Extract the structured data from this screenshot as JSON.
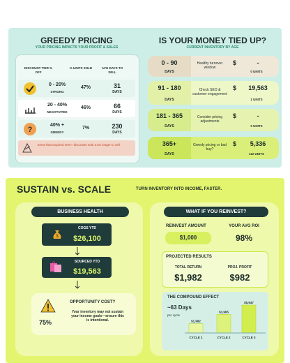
{
  "pricing": {
    "title": "GREEDY PRICING",
    "subtitle": "YOUR PRICING IMPACTS YOUR PROFIT & SALES",
    "headers": [
      "DISCOUNT TIER % OFF",
      "% UNITS SOLD",
      "AVG DAYS TO SELL"
    ],
    "rows": [
      {
        "tier": "0 - 20%",
        "tag": "STRONG",
        "units": "47%",
        "days": "31",
        "days_unit": "DAYS"
      },
      {
        "tier": "20 - 40%",
        "tag": "NEGOTIATED",
        "units": "46%",
        "days": "66",
        "days_unit": "DAYS"
      },
      {
        "tier": "40% +",
        "tag": "GREEDY",
        "units": "7%",
        "days": "230",
        "days_unit": "DAYS"
      }
    ],
    "note": "Items that required 40%+ discounts took 3.5X longer to sell."
  },
  "inventory": {
    "title": "IS YOUR MONEY TIED UP?",
    "subtitle": "CURRENT INVENTORY BY AGE",
    "rows": [
      {
        "range": "0 - 90",
        "unit": "DAYS",
        "advice": "Healthy turnover window",
        "currency": "$",
        "amount": "-",
        "units": "0 UNITS"
      },
      {
        "range": "91 - 180",
        "unit": "DAYS",
        "advice": "Check SEO & customer engagement",
        "currency": "$",
        "amount": "19,563",
        "units": "1 UNITS"
      },
      {
        "range": "181 - 365",
        "unit": "DAYS",
        "advice": "Consider pricing adjustments",
        "currency": "$",
        "amount": "-",
        "units": "0 UNITS"
      },
      {
        "range": "365+",
        "unit": "DAYS",
        "advice": "Greedy pricing or bad buy?",
        "currency": "$",
        "amount": "5,336",
        "units": "112 UNITS"
      }
    ]
  },
  "sustain": {
    "title": "SUSTAIN vs. SCALE",
    "tagline": "TURN INVENTORY INTO INCOME, FASTER."
  },
  "health": {
    "title": "BUSINESS HEALTH",
    "cogs_label": "COGS YTD",
    "cogs": "$26,100",
    "sourced_label": "SOURCED YTD",
    "sourced": "$19,563",
    "opp_title": "OPPORTUNITY COST?",
    "opp_pct": "75%",
    "opp_text": "Your inventory may not sustain your income goals—ensure this is intentional."
  },
  "reinvest": {
    "title": "WHAT IF YOU REINVEST?",
    "amount_label": "REINVEST AMOUNT",
    "amount": "$1,000",
    "roi_label": "YOUR AVG ROI",
    "roi": "98%",
    "projected_title": "PROJECTED RESULTS",
    "total_label": "TOTAL RETURN",
    "total": "$1,982",
    "profit_label": "PROJ. PROFIT",
    "profit": "$982"
  },
  "compound": {
    "title": "THE COMPOUND EFFECT",
    "days": "~63 Days",
    "per": "per cycle",
    "bars": [
      {
        "label": "$1,982",
        "value": 1982,
        "cycle": "CYCLE 1"
      },
      {
        "label": "$3,965",
        "value": 3965,
        "cycle": "CYCLE 2"
      },
      {
        "label": "$5,947",
        "value": 5947,
        "cycle": "CYCLE 3"
      }
    ]
  }
}
